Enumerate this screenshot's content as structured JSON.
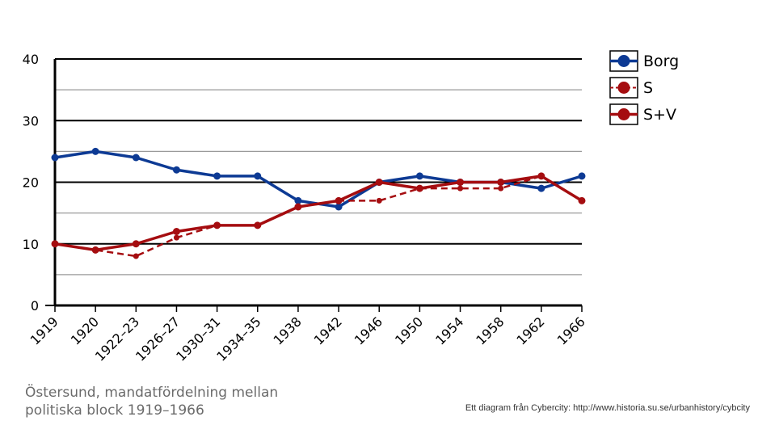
{
  "chart_data": {
    "type": "line",
    "categories": [
      "1919",
      "1920",
      "1922–23",
      "1926–27",
      "1930–31",
      "1934–35",
      "1938",
      "1942",
      "1946",
      "1950",
      "1954",
      "1958",
      "1962",
      "1966"
    ],
    "ylim": [
      0,
      40
    ],
    "yticks": [
      0,
      10,
      20,
      30,
      40
    ],
    "minor_gridlines": [
      5,
      15,
      25,
      35
    ],
    "grid": true,
    "legend_position": "right",
    "series": [
      {
        "name": "Borg",
        "color": "#0d3a94",
        "dashed": false,
        "values": [
          24,
          25,
          24,
          22,
          21,
          21,
          17,
          16,
          20,
          21,
          20,
          20,
          19,
          21
        ]
      },
      {
        "name": "S",
        "color": "#a50d10",
        "dashed": true,
        "values": [
          10,
          9,
          8,
          11,
          13,
          13,
          16,
          17,
          17,
          19,
          19,
          19,
          21,
          17
        ]
      },
      {
        "name": "S+V",
        "color": "#a50d10",
        "dashed": false,
        "values": [
          10,
          9,
          10,
          12,
          13,
          13,
          16,
          17,
          20,
          19,
          20,
          20,
          21,
          17
        ]
      }
    ],
    "caption": "Östersund, mandatfördelning mellan\npolitiska block 1919–1966",
    "credit_prefix": "Ett diagram från Cybercity: ",
    "credit_url": "http://www.historia.su.se/urbanhistory/cybcity"
  }
}
